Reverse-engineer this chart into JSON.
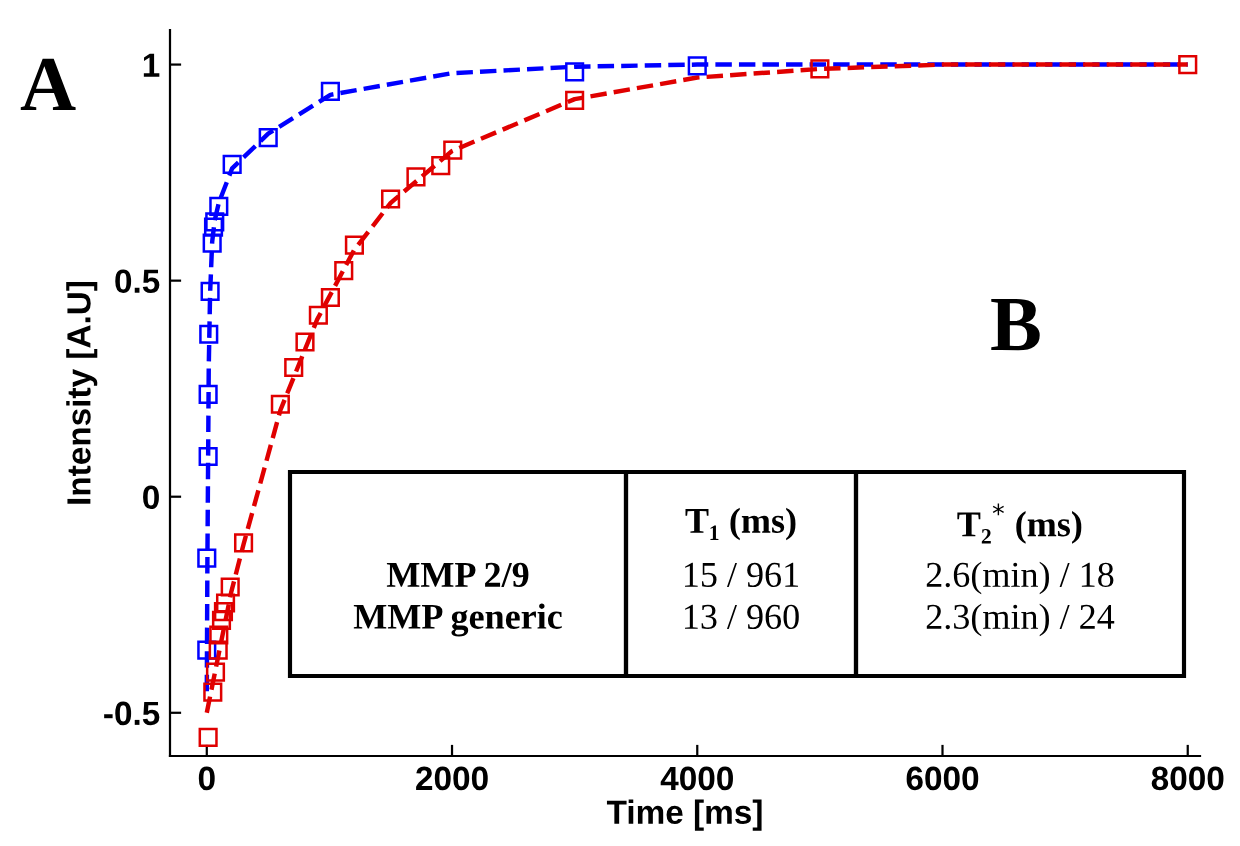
{
  "chart_data": {
    "type": "scatter",
    "xlabel": "Time [ms]",
    "ylabel": "Intensity [A.U]",
    "xlim": [
      -300,
      8100
    ],
    "ylim": [
      -0.6,
      1.08
    ],
    "xticks": [
      0,
      2000,
      4000,
      6000,
      8000
    ],
    "yticks": [
      -0.5,
      0,
      0.5,
      1
    ],
    "grid": false,
    "legend": false,
    "series": [
      {
        "marker": "square",
        "color": "#0000ff",
        "x": [
          0,
          0,
          11,
          11,
          16,
          27,
          44,
          55,
          65,
          98,
          207,
          501,
          1008,
          3000,
          4000
        ],
        "values": [
          -0.355,
          -0.142,
          0.093,
          0.237,
          0.376,
          0.475,
          0.587,
          0.624,
          0.636,
          0.672,
          0.769,
          0.831,
          0.938,
          0.983,
          0.997
        ]
      },
      {
        "marker": "square",
        "color": "#e00000",
        "x": [
          11,
          49,
          71,
          93,
          98,
          120,
          136,
          153,
          191,
          300,
          600,
          709,
          801,
          910,
          1008,
          1117,
          1204,
          1499,
          1706,
          1908,
          2006,
          3000,
          5000,
          8000
        ],
        "values": [
          -0.557,
          -0.452,
          -0.406,
          -0.355,
          -0.32,
          -0.286,
          -0.266,
          -0.246,
          -0.209,
          -0.107,
          0.214,
          0.299,
          0.358,
          0.42,
          0.461,
          0.523,
          0.582,
          0.689,
          0.74,
          0.766,
          0.802,
          0.917,
          0.99,
          1.0
        ]
      },
      {
        "type": "line",
        "line_style": "dashed",
        "marker": "none",
        "color": "#0000ff",
        "x": [
          0,
          5,
          11,
          16,
          27,
          44,
          65,
          98,
          207,
          501,
          1008,
          2000,
          3000,
          4000,
          6000,
          8000
        ],
        "values": [
          -0.45,
          -0.15,
          0.09,
          0.3,
          0.47,
          0.59,
          0.64,
          0.68,
          0.76,
          0.84,
          0.93,
          0.98,
          0.995,
          1.0,
          1.0,
          1.0
        ]
      },
      {
        "type": "line",
        "line_style": "dashed",
        "marker": "none",
        "color": "#e00000",
        "x": [
          0,
          50,
          100,
          200,
          300,
          600,
          900,
          1200,
          1500,
          2000,
          3000,
          4000,
          5000,
          6000,
          8000
        ],
        "values": [
          -0.5,
          -0.43,
          -0.36,
          -0.22,
          -0.11,
          0.2,
          0.41,
          0.57,
          0.68,
          0.8,
          0.92,
          0.97,
          0.99,
          1.0,
          1.0
        ]
      }
    ],
    "annotations": [
      "A",
      "B",
      "T₁ (ms)",
      "T₂$^{*}$ (ms)",
      "MMP 2/9",
      "MMP generic",
      "15 / 961",
      "13 / 960",
      "2.6(min) / 18",
      "2.3(min) / 24"
    ]
  }
}
